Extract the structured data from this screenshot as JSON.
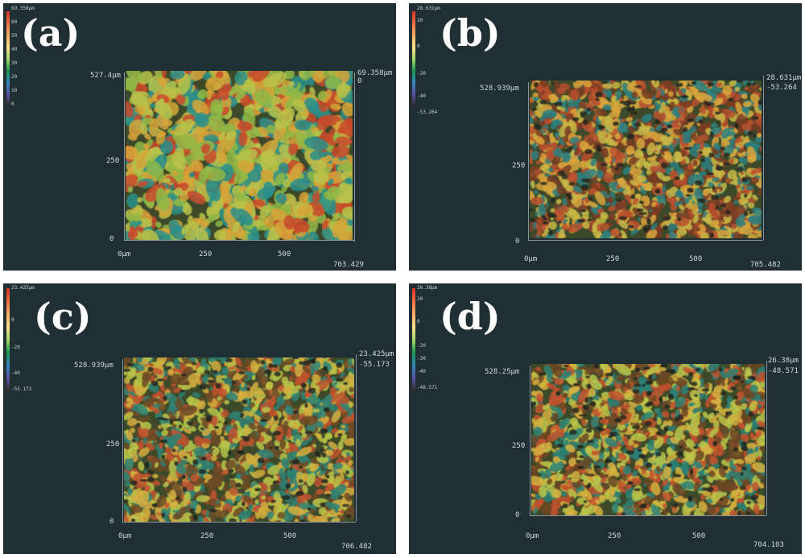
{
  "colors": {
    "panel_bg": "#1f2f33",
    "border": "#ffffff"
  },
  "panels": [
    {
      "label": "(a)",
      "cbar_ticks": [
        "69.358µm",
        "60",
        "50",
        "40",
        "30",
        "20",
        "10",
        "0"
      ],
      "y_top": "527.4µm",
      "y_mid": "250",
      "y_zero": "0",
      "x_zero": "0µm",
      "x_mid1": "250",
      "x_mid2": "500",
      "x_max": "703.429",
      "z_top": "69.358µm",
      "z_bottom": "0",
      "colors": [
        "#c84a2c",
        "#d6a438",
        "#8fb846",
        "#b9c24a",
        "#2b8f8a"
      ]
    },
    {
      "label": "(b)",
      "cbar_ticks": [
        "28.631µm",
        "20",
        "0",
        "-20",
        "-40",
        "-53.264"
      ],
      "y_top": "528.939µm",
      "y_mid": "250",
      "y_zero": "0",
      "x_zero": "0µm",
      "x_mid1": "250",
      "x_mid2": "500",
      "x_max": "705.482",
      "z_top": "28.631µm",
      "z_bottom": "-53.264",
      "colors": [
        "#b8502e",
        "#d8a53c",
        "#c7b846",
        "#7a3d23",
        "#2e7f7f"
      ]
    },
    {
      "label": "(c)",
      "cbar_ticks": [
        "23.425µm",
        "0",
        "-20",
        "-40",
        "-55.173"
      ],
      "y_top": "528.939µm",
      "y_mid": "250",
      "y_zero": "0",
      "x_zero": "0µm",
      "x_mid1": "250",
      "x_mid2": "500",
      "x_max": "706.482",
      "z_top": "23.425µm",
      "z_bottom": "-55.173",
      "colors": [
        "#c0532f",
        "#d2ae3f",
        "#b7c449",
        "#6d4a26",
        "#2f8274"
      ]
    },
    {
      "label": "(d)",
      "cbar_ticks": [
        "26.38µm",
        "20",
        "0",
        "-20",
        "-30",
        "-40",
        "-48.571"
      ],
      "y_top": "528.25µm",
      "y_mid": "250",
      "y_zero": "0",
      "x_zero": "0µm",
      "x_mid1": "250",
      "x_mid2": "500",
      "x_max": "704.103",
      "z_top": "26.38µm",
      "z_bottom": "-48.571",
      "colors": [
        "#c2532e",
        "#d6b23f",
        "#b8c64a",
        "#6b4623",
        "#2d8176"
      ]
    }
  ]
}
